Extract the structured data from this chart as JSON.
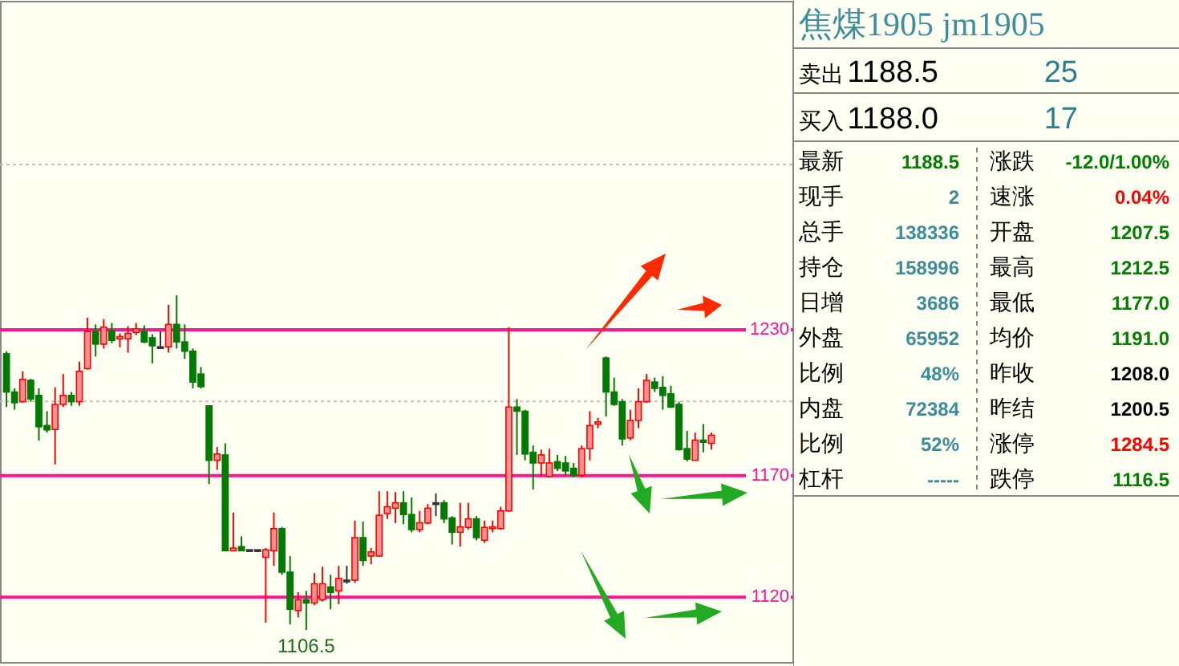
{
  "chart_data": [
    {
      "type": "candlestick",
      "ylim": [
        1093,
        1365
      ],
      "yticks": [
        1230,
        1170,
        1120
      ],
      "categories": [
        null,
        null,
        null,
        null,
        null,
        null,
        null,
        null,
        null,
        null,
        null,
        null,
        null,
        null,
        null,
        null,
        null,
        null,
        null,
        null,
        null,
        null,
        null,
        null,
        null,
        null,
        null,
        null,
        null,
        null,
        null,
        null,
        null,
        null,
        null,
        null,
        null,
        null,
        null,
        null,
        null,
        null,
        null,
        null,
        null,
        null,
        null,
        null,
        null,
        null,
        null,
        null,
        null,
        null,
        null,
        null,
        null,
        null,
        null,
        null,
        null,
        null,
        null,
        null,
        null,
        null,
        null,
        null,
        null,
        null,
        null,
        null,
        null,
        null,
        null,
        null,
        null,
        null,
        null,
        null,
        null,
        null,
        null,
        null,
        null,
        null,
        null,
        null
      ],
      "ohlc": [
        [
          1220.1,
          1221.2,
          1198.2,
          1204.4
        ],
        [
          1204.4,
          1205.9,
          1197.1,
          1200.0
        ],
        [
          1200.4,
          1212.9,
          1200.0,
          1209.6
        ],
        [
          1209.2,
          1209.8,
          1200.4,
          1201.5
        ],
        [
          1203.0,
          1205.9,
          1184.4,
          1190.1
        ],
        [
          1190.6,
          1196.5,
          1187.7,
          1188.8
        ],
        [
          1189.0,
          1206.3,
          1174.6,
          1199.3
        ],
        [
          1199.3,
          1211.8,
          1198.2,
          1203.0
        ],
        [
          1203.0,
          1204.4,
          1198.7,
          1200.4
        ],
        [
          1200.4,
          1216.9,
          1198.7,
          1212.9
        ],
        [
          1214.0,
          1235.0,
          1213.6,
          1229.3
        ],
        [
          1229.3,
          1232.2,
          1219.0,
          1224.1
        ],
        [
          1224.1,
          1234.4,
          1222.3,
          1231.1
        ],
        [
          1229.6,
          1232.8,
          1224.5,
          1225.6
        ],
        [
          1226.3,
          1228.5,
          1222.8,
          1227.2
        ],
        [
          1226.3,
          1231.5,
          1220.6,
          1228.5
        ],
        [
          1228.9,
          1232.8,
          1227.8,
          1230.4
        ],
        [
          1229.3,
          1231.8,
          1224.5,
          1225.0
        ],
        [
          1226.7,
          1228.2,
          1216.2,
          1223.4
        ],
        [
          1223.0,
          1229.3,
          1222.3,
          1223.0
        ],
        [
          1223.0,
          1240.3,
          1220.6,
          1232.2
        ],
        [
          1232.2,
          1244.2,
          1222.3,
          1225.0
        ],
        [
          1225.0,
          1232.2,
          1218.0,
          1221.2
        ],
        [
          1221.2,
          1222.3,
          1205.9,
          1208.5
        ],
        [
          1211.8,
          1214.7,
          1205.9,
          1206.6
        ],
        [
          1198.7,
          1198.7,
          1166.5,
          1176.3
        ],
        [
          1176.3,
          1181.8,
          1172.4,
          1178.9
        ],
        [
          1178.5,
          1183.3,
          1139.1,
          1139.1
        ],
        [
          1139.1,
          1154.8,
          1139.1,
          1140.2
        ],
        [
          1140.8,
          1145.0,
          1139.1,
          1139.1
        ],
        [
          1139.5,
          1139.5,
          1139.5,
          1139.5
        ],
        [
          1139.5,
          1139.5,
          1139.5,
          1139.5
        ],
        [
          1136.4,
          1140.2,
          1109.5,
          1139.5
        ],
        [
          1139.1,
          1154.8,
          1132.9,
          1148.2
        ],
        [
          1148.2,
          1148.9,
          1129.2,
          1130.3
        ],
        [
          1130.3,
          1136.9,
          1108.8,
          1115.0
        ],
        [
          1114.5,
          1122.0,
          1111.7,
          1118.9
        ],
        [
          1118.9,
          1122.6,
          1106.5,
          1117.6
        ],
        [
          1117.6,
          1129.9,
          1116.7,
          1125.5
        ],
        [
          1118.9,
          1132.5,
          1118.2,
          1125.5
        ],
        [
          1124.2,
          1129.2,
          1115.0,
          1122.0
        ],
        [
          1122.6,
          1132.9,
          1117.1,
          1127.7
        ],
        [
          1127.0,
          1132.9,
          1125.5,
          1127.0
        ],
        [
          1127.0,
          1151.5,
          1125.9,
          1144.5
        ],
        [
          1144.5,
          1151.1,
          1132.9,
          1135.1
        ],
        [
          1136.9,
          1140.2,
          1133.6,
          1138.6
        ],
        [
          1136.9,
          1163.6,
          1136.9,
          1153.7
        ],
        [
          1154.4,
          1163.6,
          1152.2,
          1157.2
        ],
        [
          1156.6,
          1163.2,
          1150.5,
          1158.8
        ],
        [
          1158.8,
          1163.6,
          1150.0,
          1154.0
        ],
        [
          1154.0,
          1161.0,
          1146.7,
          1147.8
        ],
        [
          1147.8,
          1155.5,
          1146.7,
          1150.6
        ],
        [
          1150.5,
          1158.3,
          1150.0,
          1156.6
        ],
        [
          1158.8,
          1162.7,
          1153.3,
          1158.8
        ],
        [
          1158.8,
          1159.9,
          1150.5,
          1152.2
        ],
        [
          1152.6,
          1153.3,
          1141.7,
          1146.7
        ],
        [
          1146.7,
          1158.8,
          1140.8,
          1148.9
        ],
        [
          1148.7,
          1158.8,
          1147.8,
          1152.2
        ],
        [
          1152.2,
          1153.3,
          1143.4,
          1144.5
        ],
        [
          1143.4,
          1151.5,
          1142.3,
          1148.7
        ],
        [
          1148.2,
          1151.5,
          1146.7,
          1148.9
        ],
        [
          1148.2,
          1157.2,
          1147.8,
          1155.5
        ],
        [
          1155.5,
          1231.1,
          1155.1,
          1198.2
        ],
        [
          1198.2,
          1201.5,
          1178.5,
          1196.5
        ],
        [
          1196.5,
          1197.1,
          1176.3,
          1178.9
        ],
        [
          1179.6,
          1182.4,
          1164.3,
          1175.2
        ],
        [
          1175.2,
          1180.7,
          1169.7,
          1178.5
        ],
        [
          1169.7,
          1181.1,
          1169.3,
          1175.2
        ],
        [
          1175.7,
          1178.5,
          1171.9,
          1173.0
        ],
        [
          1175.2,
          1178.1,
          1170.2,
          1171.9
        ],
        [
          1173.0,
          1175.2,
          1169.3,
          1170.2
        ],
        [
          1170.2,
          1182.4,
          1169.3,
          1181.1
        ],
        [
          1181.1,
          1196.5,
          1176.3,
          1190.6
        ],
        [
          1191.2,
          1193.8,
          1189.5,
          1192.1
        ],
        [
          1218.4,
          1219.0,
          1194.3,
          1204.4
        ],
        [
          1204.4,
          1210.3,
          1198.7,
          1199.3
        ],
        [
          1200.4,
          1201.5,
          1182.4,
          1185.1
        ],
        [
          1185.5,
          1197.1,
          1184.6,
          1192.7
        ],
        [
          1192.7,
          1205.9,
          1189.5,
          1200.4
        ],
        [
          1200.4,
          1211.8,
          1200.0,
          1209.2
        ],
        [
          1208.5,
          1210.3,
          1204.4,
          1205.9
        ],
        [
          1206.3,
          1210.9,
          1197.1,
          1203.0
        ],
        [
          1203.7,
          1207.0,
          1197.8,
          1198.2
        ],
        [
          1199.3,
          1200.4,
          1180.3,
          1180.7
        ],
        [
          1181.1,
          1188.4,
          1175.9,
          1176.8
        ],
        [
          1176.3,
          1187.7,
          1176.3,
          1184.6
        ],
        [
          1184.6,
          1191.2,
          1179.6,
          1183.7
        ],
        [
          1183.3,
          1187.7,
          1180.7,
          1186.6
        ]
      ],
      "ref_lines": [
        {
          "axis": "y",
          "value": 1230,
          "color": "#ff1493",
          "line_style": "solid"
        },
        {
          "axis": "y",
          "value": 1170,
          "color": "#ff1493",
          "line_style": "solid"
        },
        {
          "axis": "y",
          "value": 1120,
          "color": "#ff1493",
          "line_style": "solid"
        },
        {
          "axis": "y",
          "value": 1200.5,
          "color": "#c0c0c0",
          "line_style": "dotted"
        },
        {
          "axis": "y",
          "value": 1298,
          "color": "#c0c0c0",
          "line_style": "dotted"
        }
      ],
      "annotations": [
        {
          "text": "1106.5",
          "y": 1106.5
        }
      ]
    },
    {
      "type": "other",
      "title": "焦煤1905 jm1905",
      "annotations": [
        "卖出",
        "1188.5",
        "25",
        "买入",
        "1188.0",
        "17",
        "最新",
        "1188.5",
        "涨跌",
        "-12.0/1.00%",
        "现手",
        "2",
        "速涨",
        "0.04%",
        "总手",
        "138336",
        "开盘",
        "1207.5",
        "持仓",
        "158996",
        "最高",
        "1212.5",
        "日增",
        "3686",
        "最低",
        "1177.0",
        "外盘",
        "65952",
        "均价",
        "1191.0",
        "比例",
        "48%",
        "昨收",
        "1208.0",
        "内盘",
        "72384",
        "昨结",
        "1200.5",
        "比例",
        "52%",
        "涨停",
        "1284.5",
        "杠杆",
        "-----",
        "跌停",
        "1116.5"
      ],
      "colors": [
        "#000000",
        "#000000",
        "#2a7f8f",
        "#000000",
        "#000000",
        "#2a7f8f",
        "#000000",
        "#008000",
        "#000000",
        "#008000",
        "#000000",
        "#3c8c99",
        "#000000",
        "#ff0000",
        "#000000",
        "#3c8c99",
        "#000000",
        "#008000",
        "#000000",
        "#3c8c99",
        "#000000",
        "#008000",
        "#000000",
        "#3c8c99",
        "#000000",
        "#008000",
        "#000000",
        "#3c8c99",
        "#000000",
        "#008000",
        "#000000",
        "#3c8c99",
        "#000000",
        "#000000",
        "#000000",
        "#3c8c99",
        "#000000",
        "#000000",
        "#000000",
        "#3c8c99",
        "#000000",
        "#ff0000",
        "#000000",
        "#3c8c99",
        "#000000",
        "#008000"
      ]
    }
  ]
}
